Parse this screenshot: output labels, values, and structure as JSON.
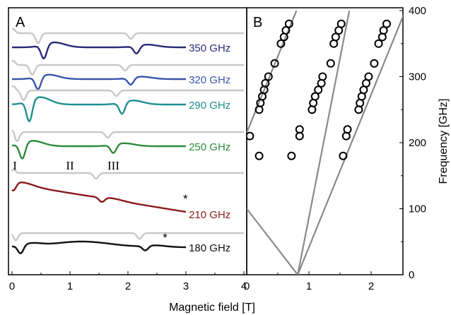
{
  "chart_data": [
    {
      "panel": "A",
      "type": "line",
      "xlabel": "Magnetic field [T]",
      "xlim": [
        -0.05,
        4.0
      ],
      "xticks": [
        "0",
        "1",
        "2",
        "3",
        "4"
      ],
      "ylabel": "",
      "grid": false,
      "series": [
        {
          "name": "350 GHz",
          "color": "#2a2a7a",
          "baseline_y": 67,
          "dip_depth": 20,
          "dips": [
            0.55,
            2.15
          ],
          "x_end": 3.0
        },
        {
          "name": "320 GHz",
          "color": "#3a56a8",
          "baseline_y": 112,
          "dip_depth": 18,
          "dips": [
            0.45,
            2.05
          ],
          "x_end": 3.0
        },
        {
          "name": "290 GHz",
          "color": "#1f8f8f",
          "baseline_y": 148,
          "dip_depth": 30,
          "dips": [
            0.3,
            1.9
          ],
          "x_end": 3.0
        },
        {
          "name": "250 GHz",
          "color": "#2e8b3c",
          "baseline_y": 207,
          "dip_depth": 22,
          "dips": [
            0.18,
            1.75
          ],
          "x_end": 3.0
        },
        {
          "name": "210 GHz",
          "color": "#8b1a1a",
          "baseline_y": 265,
          "dip_depth": 12,
          "dips": [
            0.02,
            1.55
          ],
          "x_end": 3.0
        },
        {
          "name": "180 GHz",
          "color": "#111111",
          "baseline_y": 350,
          "dip_depth": 12,
          "dips": [
            0.15,
            2.3
          ],
          "x_end": 3.0
        }
      ],
      "labels": [
        "350 GHz",
        "320 GHz",
        "290 GHz",
        "250 GHz",
        "210 GHz",
        "180 GHz"
      ],
      "transition_labels": [
        {
          "text": "I",
          "x": 0.05
        },
        {
          "text": "II",
          "x": 1.0
        },
        {
          "text": "III",
          "x": 1.75
        }
      ],
      "asterisks": [
        {
          "text": "*",
          "series": "210 GHz",
          "x": 3.0
        },
        {
          "text": "*",
          "series": "180 GHz",
          "x": 2.65
        }
      ]
    },
    {
      "panel": "B",
      "type": "scatter",
      "xlabel": "",
      "ylabel": "Frequency [GHz]",
      "xlim": [
        0,
        2.5
      ],
      "ylim": [
        0,
        400
      ],
      "xticks": [
        "0",
        "1",
        "2"
      ],
      "yticks": [
        "0",
        "100",
        "200",
        "300",
        "400"
      ],
      "yaxis_side": "right",
      "lines": [
        {
          "points": [
            [
              0,
              100
            ],
            [
              0.82,
              0
            ]
          ]
        },
        {
          "points": [
            [
              0,
              215
            ],
            [
              0.8,
              400
            ]
          ]
        },
        {
          "points": [
            [
              0.82,
              0
            ],
            [
              2.55,
              400
            ]
          ]
        },
        {
          "points": [
            [
              0.82,
              0
            ],
            [
              1.65,
              400
            ]
          ]
        }
      ],
      "points": [
        {
          "x": 0.05,
          "y": 210
        },
        {
          "x": 0.2,
          "y": 180
        },
        {
          "x": 0.2,
          "y": 250
        },
        {
          "x": 0.22,
          "y": 260
        },
        {
          "x": 0.25,
          "y": 270
        },
        {
          "x": 0.28,
          "y": 280
        },
        {
          "x": 0.3,
          "y": 290
        },
        {
          "x": 0.35,
          "y": 300
        },
        {
          "x": 0.45,
          "y": 320
        },
        {
          "x": 0.55,
          "y": 350
        },
        {
          "x": 0.6,
          "y": 360
        },
        {
          "x": 0.63,
          "y": 370
        },
        {
          "x": 0.68,
          "y": 380
        },
        {
          "x": 0.72,
          "y": 180
        },
        {
          "x": 0.85,
          "y": 210
        },
        {
          "x": 0.85,
          "y": 220
        },
        {
          "x": 1.05,
          "y": 250
        },
        {
          "x": 1.07,
          "y": 260
        },
        {
          "x": 1.1,
          "y": 270
        },
        {
          "x": 1.15,
          "y": 280
        },
        {
          "x": 1.2,
          "y": 290
        },
        {
          "x": 1.22,
          "y": 300
        },
        {
          "x": 1.35,
          "y": 320
        },
        {
          "x": 1.4,
          "y": 350
        },
        {
          "x": 1.43,
          "y": 360
        },
        {
          "x": 1.48,
          "y": 370
        },
        {
          "x": 1.52,
          "y": 380
        },
        {
          "x": 1.55,
          "y": 180
        },
        {
          "x": 1.6,
          "y": 210
        },
        {
          "x": 1.62,
          "y": 220
        },
        {
          "x": 1.8,
          "y": 250
        },
        {
          "x": 1.82,
          "y": 260
        },
        {
          "x": 1.85,
          "y": 270
        },
        {
          "x": 1.88,
          "y": 280
        },
        {
          "x": 1.92,
          "y": 290
        },
        {
          "x": 1.96,
          "y": 300
        },
        {
          "x": 2.05,
          "y": 320
        },
        {
          "x": 2.12,
          "y": 350
        },
        {
          "x": 2.18,
          "y": 360
        },
        {
          "x": 2.2,
          "y": 370
        },
        {
          "x": 2.25,
          "y": 380
        }
      ]
    }
  ]
}
